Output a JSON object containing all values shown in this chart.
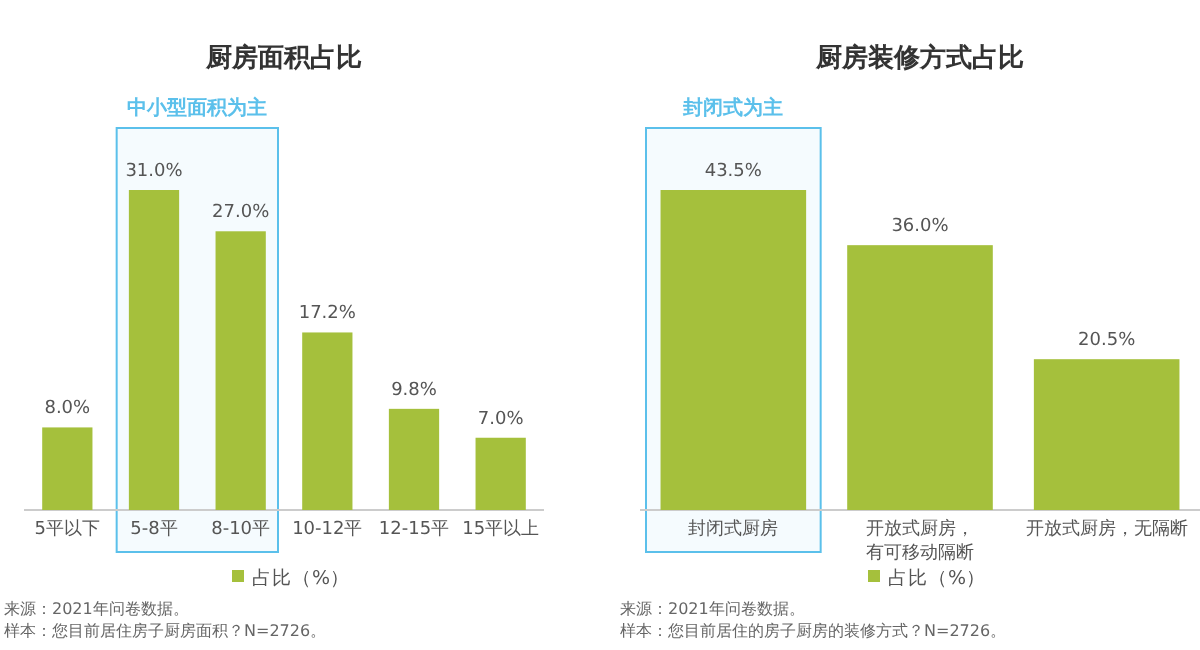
{
  "chart_data": [
    {
      "type": "bar",
      "title": "厨房面积占比",
      "categories": [
        "5平以下",
        "5-8平",
        "8-10平",
        "10-12平",
        "12-15平",
        "15平以上"
      ],
      "series": [
        {
          "name": "占比（%）",
          "color": "#a5c03c",
          "values": [
            8.0,
            31.0,
            27.0,
            17.2,
            9.8,
            7.0
          ],
          "value_labels": [
            "8.0%",
            "31.0%",
            "27.0%",
            "17.2%",
            "9.8%",
            "7.0%"
          ]
        }
      ],
      "bands": [
        {
          "axis": "x",
          "from": "5-8平",
          "to": "8-10平",
          "label": "中小型面积为主",
          "color": "#5bc0eb"
        }
      ],
      "legend": "bottom",
      "annotations": [
        "来源：2021年问卷数据。",
        "样本：您目前居住房子厨房面积？N=2726。"
      ]
    },
    {
      "type": "bar",
      "title": "厨房装修方式占比",
      "categories": [
        "封闭式厨房",
        "开放式厨房，有可移动隔断",
        "开放式厨房，无隔断"
      ],
      "series": [
        {
          "name": "占比（%）",
          "color": "#a5c03c",
          "values": [
            43.5,
            36.0,
            20.5
          ],
          "value_labels": [
            "43.5%",
            "36.0%",
            "20.5%"
          ]
        }
      ],
      "bands": [
        {
          "axis": "x",
          "from": "封闭式厨房",
          "to": "封闭式厨房",
          "label": "封闭式为主",
          "color": "#5bc0eb"
        }
      ],
      "legend": "bottom",
      "annotations": [
        "来源：2021年问卷数据。",
        "样本：您目前居住的房子厨房的装修方式？N=2726。"
      ]
    }
  ]
}
